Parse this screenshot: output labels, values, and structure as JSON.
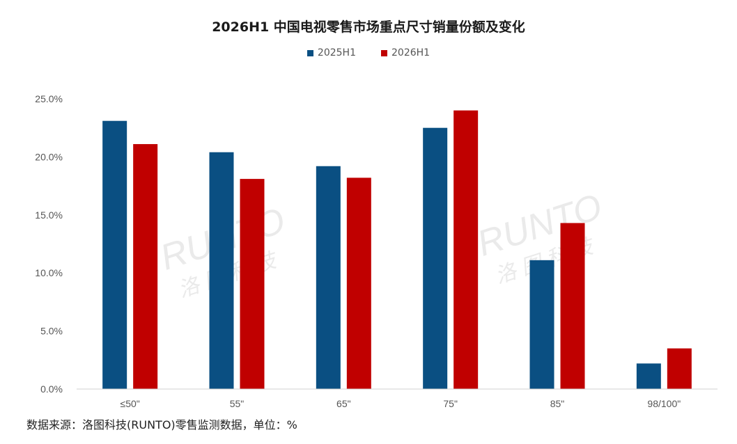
{
  "chart_data": {
    "type": "bar",
    "title": "2026H1 中国电视零售市场重点尺寸销量份额及变化",
    "categories": [
      "≤50\"",
      "55\"",
      "65\"",
      "75\"",
      "85\"",
      "98/100\""
    ],
    "series": [
      {
        "name": "2025H1",
        "color": "#0a4f82",
        "values": [
          23.1,
          20.4,
          19.2,
          22.5,
          11.1,
          2.2
        ]
      },
      {
        "name": "2026H1",
        "color": "#c00000",
        "values": [
          21.1,
          18.1,
          18.2,
          24.0,
          14.3,
          3.5
        ]
      }
    ],
    "ylim": [
      0,
      25
    ],
    "yticks": [
      "0.0%",
      "5.0%",
      "10.0%",
      "15.0%",
      "20.0%",
      "25.0%"
    ],
    "grid": false,
    "legend_position": "top-center",
    "xlabel": "",
    "ylabel": ""
  },
  "watermark": {
    "brand": "RUNTO",
    "chinese": "洛 图 科 技"
  },
  "footer": {
    "source": "数据来源：洛图科技(RUNTO)零售监测数据，单位：%"
  }
}
